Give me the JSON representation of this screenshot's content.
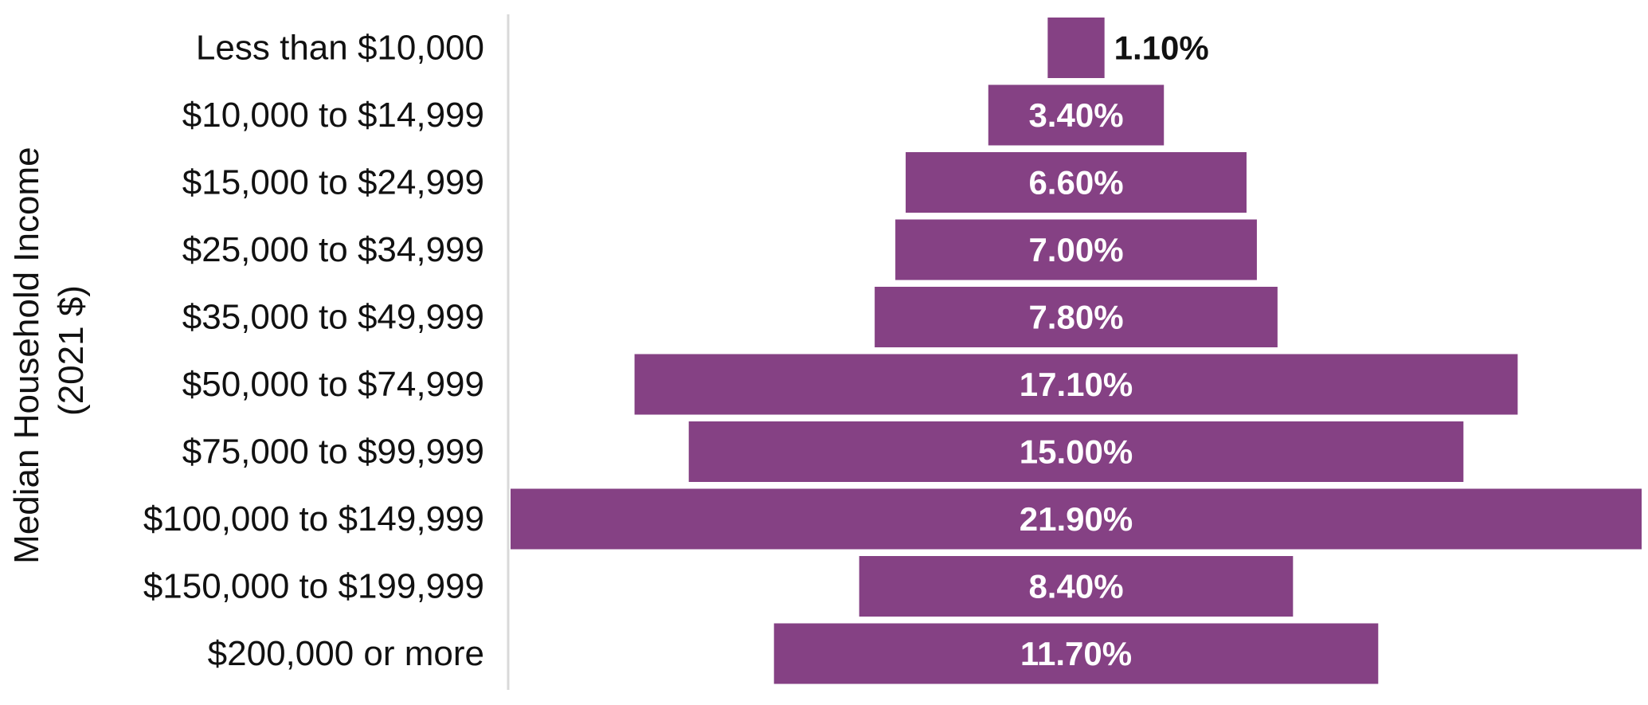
{
  "chart_data": {
    "type": "bar",
    "orientation": "horizontal-centered",
    "ylabel": [
      "Median Household Income",
      "(2021 $)"
    ],
    "categories": [
      "Less than $10,000",
      "$10,000 to $14,999",
      "$15,000 to $24,999",
      "$25,000 to $34,999",
      "$35,000 to $49,999",
      "$50,000 to $74,999",
      "$75,000 to $99,999",
      "$100,000 to $149,999",
      "$150,000 to $199,999",
      "$200,000 or more"
    ],
    "values": [
      1.1,
      3.4,
      6.6,
      7.0,
      7.8,
      17.1,
      15.0,
      21.9,
      8.4,
      11.7
    ],
    "data_labels": [
      "1.10%",
      "3.40%",
      "6.60%",
      "7.00%",
      "7.80%",
      "17.10%",
      "15.00%",
      "21.90%",
      "8.40%",
      "11.70%"
    ],
    "xlim": [
      0,
      21.9
    ],
    "grid": false,
    "legend": "none",
    "colors": {
      "bar": "#854184",
      "label_inside": "#ffffff",
      "label_outside": "#111111",
      "axis_line": "#d9d9d9"
    }
  }
}
